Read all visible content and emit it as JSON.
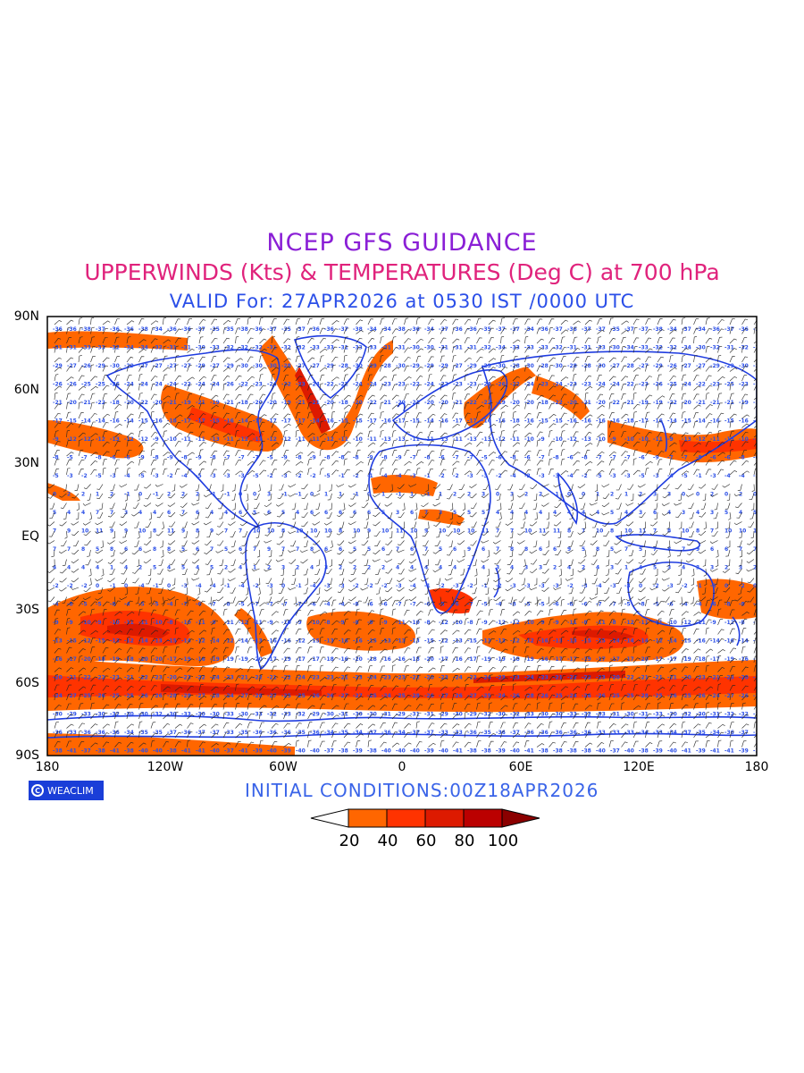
{
  "header": {
    "line1": "NCEP GFS GUIDANCE",
    "line2": "UPPERWINDS (Kts) & TEMPERATURES (Deg C) at 700 hPa",
    "line3": "VALID For: 27APR2026 at 0530 IST /0000 UTC"
  },
  "map": {
    "lat_labels": [
      "90N",
      "60N",
      "30N",
      "EQ",
      "30S",
      "60S",
      "90S"
    ],
    "lon_labels": [
      "180",
      "120W",
      "60W",
      "0",
      "60E",
      "120E",
      "180"
    ],
    "colors": {
      "jet_20_40": "#ff6600",
      "jet_40_60": "#ff3300",
      "jet_60_80": "#dd1a00",
      "jet_80_100": "#bb0000",
      "jet_100_plus": "#8b0000",
      "coastlines": "#1f3ce0",
      "isotherm_labels": "#2b4fe8"
    }
  },
  "footer": {
    "logo_text": "WEACLIM",
    "initial_conditions": "INITIAL CONDITIONS:00Z18APR2026"
  },
  "legend": {
    "labels": [
      "20",
      "40",
      "60",
      "80",
      "100"
    ],
    "colors": [
      "#ffffff",
      "#ff6600",
      "#ff3300",
      "#dd1a00",
      "#bb0000",
      "#8b0000"
    ]
  }
}
